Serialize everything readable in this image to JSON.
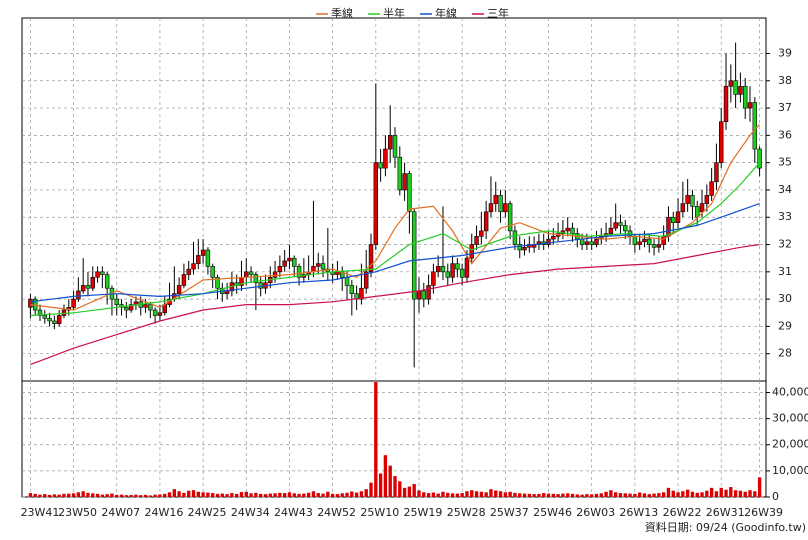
{
  "chart_data": {
    "type": "candlestick",
    "legend": "top",
    "grid": true,
    "source_note": "資料日期: 09/24 (Goodinfo.tw)",
    "up_color": "#dd0000",
    "down_color": "#22cc22",
    "ylim": [
      27,
      40.3
    ],
    "yticks": [
      28,
      29,
      30,
      31,
      32,
      33,
      34,
      35,
      36,
      37,
      38,
      39
    ],
    "x": [
      "23W41",
      null,
      null,
      null,
      null,
      null,
      null,
      null,
      null,
      "23W50",
      null,
      null,
      null,
      null,
      null,
      null,
      null,
      null,
      "24W07",
      null,
      null,
      null,
      null,
      null,
      null,
      null,
      null,
      "24W16",
      null,
      null,
      null,
      null,
      null,
      null,
      null,
      null,
      "24W25",
      null,
      null,
      null,
      null,
      null,
      null,
      null,
      null,
      "24W34",
      null,
      null,
      null,
      null,
      null,
      null,
      null,
      null,
      "24W43",
      null,
      null,
      null,
      null,
      null,
      null,
      null,
      null,
      "24W52",
      null,
      null,
      null,
      null,
      null,
      null,
      null,
      null,
      "25W10",
      null,
      null,
      null,
      null,
      null,
      null,
      null,
      null,
      "25W19",
      null,
      null,
      null,
      null,
      null,
      null,
      null,
      null,
      "25W28",
      null,
      null,
      null,
      null,
      null,
      null,
      null,
      null,
      "25W37",
      null,
      null,
      null,
      null,
      null,
      null,
      null,
      null,
      "25W46",
      null,
      null,
      null,
      null,
      null,
      null,
      null,
      null,
      "26W03",
      null,
      null,
      null,
      null,
      null,
      null,
      null,
      null,
      "26W13",
      null,
      null,
      null,
      null,
      null,
      null,
      null,
      null,
      "26W22",
      null,
      null,
      null,
      null,
      null,
      null,
      null,
      null,
      "26W31",
      null,
      null,
      null,
      null,
      null,
      null,
      null,
      "26W39"
    ],
    "open": [
      29.7,
      30.0,
      29.6,
      29.4,
      29.3,
      29.2,
      29.1,
      29.4,
      29.6,
      29.7,
      30.0,
      30.3,
      30.5,
      30.4,
      30.8,
      31.0,
      30.9,
      30.4,
      30.0,
      29.8,
      29.7,
      29.6,
      29.8,
      29.9,
      29.7,
      29.8,
      29.6,
      29.4,
      29.5,
      29.8,
      30.0,
      30.2,
      30.5,
      30.9,
      31.1,
      31.3,
      31.6,
      31.8,
      31.2,
      30.8,
      30.4,
      30.2,
      30.3,
      30.6,
      30.5,
      30.8,
      31.0,
      30.9,
      30.6,
      30.4,
      30.6,
      30.8,
      31.0,
      31.2,
      31.4,
      31.5,
      31.2,
      30.8,
      30.9,
      31.0,
      31.2,
      31.3,
      31.1,
      31.0,
      30.9,
      31.0,
      30.8,
      30.5,
      30.2,
      30.0,
      30.4,
      31.0,
      32.0,
      35.0,
      34.8,
      35.5,
      36.0,
      35.2,
      34.0,
      34.6,
      33.2,
      30.0,
      30.3,
      30.0,
      30.5,
      31.0,
      31.2,
      31.0,
      30.8,
      31.3,
      31.1,
      30.8,
      31.5,
      32.0,
      32.3,
      32.5,
      33.2,
      33.5,
      33.8,
      33.2,
      33.5,
      32.5,
      32.0,
      31.8,
      31.9,
      31.9,
      32.0,
      32.1,
      32.0,
      32.2,
      32.3,
      32.4,
      32.5,
      32.6,
      32.4,
      32.2,
      32.0,
      32.1,
      32.0,
      32.2,
      32.3,
      32.4,
      32.6,
      32.8,
      32.7,
      32.5,
      32.3,
      32.0,
      32.1,
      32.2,
      32.0,
      31.9,
      32.0,
      32.3,
      33.0,
      32.8,
      33.2,
      33.5,
      33.8,
      33.4,
      33.2,
      33.5,
      33.8,
      34.3,
      35.0,
      36.5,
      37.8,
      38.0,
      37.5,
      37.8,
      37.0,
      37.2,
      35.5
    ],
    "high": [
      30.2,
      30.1,
      29.8,
      29.6,
      29.5,
      29.4,
      29.6,
      29.8,
      30.0,
      30.3,
      30.8,
      31.5,
      31.0,
      31.2,
      31.2,
      31.2,
      31.0,
      30.5,
      30.2,
      30.0,
      29.9,
      30.0,
      30.1,
      30.1,
      30.0,
      29.9,
      29.7,
      29.8,
      30.1,
      30.6,
      31.2,
      30.8,
      31.3,
      31.4,
      32.1,
      32.2,
      32.2,
      31.9,
      31.3,
      30.9,
      30.6,
      30.6,
      31.0,
      30.9,
      31.4,
      31.5,
      31.2,
      31.0,
      30.8,
      30.9,
      31.2,
      31.4,
      31.6,
      31.8,
      32.0,
      31.6,
      31.3,
      31.5,
      31.6,
      33.6,
      31.7,
      31.6,
      32.6,
      31.3,
      31.4,
      31.2,
      31.0,
      30.7,
      30.5,
      31.3,
      31.8,
      32.4,
      37.9,
      35.5,
      36.0,
      37.1,
      36.3,
      35.6,
      35.0,
      34.7,
      33.3,
      30.8,
      30.6,
      30.9,
      31.3,
      31.6,
      33.4,
      31.3,
      31.6,
      31.5,
      31.3,
      31.8,
      32.4,
      32.7,
      33.2,
      33.6,
      34.5,
      34.3,
      34.0,
      34.0,
      33.6,
      32.7,
      32.3,
      32.2,
      32.3,
      32.3,
      32.4,
      32.4,
      32.5,
      32.6,
      32.8,
      32.9,
      33.0,
      32.8,
      32.6,
      32.4,
      32.4,
      32.3,
      32.5,
      32.6,
      32.8,
      33.0,
      33.5,
      33.1,
      32.9,
      32.7,
      32.4,
      32.4,
      32.5,
      32.4,
      32.2,
      32.3,
      32.7,
      33.4,
      33.2,
      33.7,
      34.3,
      34.4,
      34.0,
      33.6,
      34.0,
      34.2,
      34.8,
      35.7,
      37.0,
      39.0,
      38.6,
      39.4,
      38.3,
      38.1,
      37.8,
      37.4,
      35.6
    ],
    "low": [
      29.3,
      29.4,
      29.2,
      29.1,
      29.0,
      28.9,
      29.0,
      29.3,
      29.4,
      29.6,
      29.9,
      30.2,
      30.1,
      30.3,
      30.6,
      30.4,
      29.8,
      29.4,
      29.4,
      29.4,
      29.3,
      29.5,
      29.6,
      29.4,
      29.5,
      29.3,
      29.1,
      29.2,
      29.4,
      29.7,
      29.9,
      30.0,
      30.4,
      30.7,
      30.9,
      31.1,
      31.3,
      30.9,
      30.4,
      30.0,
      29.9,
      30.0,
      30.1,
      30.2,
      30.3,
      30.5,
      30.6,
      29.6,
      30.1,
      30.2,
      30.4,
      30.6,
      30.8,
      31.0,
      31.1,
      30.8,
      30.5,
      30.6,
      30.7,
      30.8,
      30.9,
      30.8,
      30.7,
      30.6,
      30.7,
      30.3,
      30.0,
      29.4,
      29.6,
      29.8,
      30.2,
      30.8,
      31.8,
      34.3,
      34.5,
      35.0,
      34.8,
      33.8,
      33.6,
      32.4,
      27.5,
      29.5,
      29.7,
      29.8,
      30.2,
      30.8,
      30.7,
      30.5,
      30.6,
      30.8,
      30.5,
      30.6,
      31.3,
      31.8,
      32.0,
      32.2,
      33.0,
      33.2,
      32.8,
      33.0,
      32.2,
      31.8,
      31.5,
      31.6,
      31.7,
      31.7,
      31.8,
      31.8,
      31.9,
      32.0,
      32.1,
      32.2,
      32.3,
      32.1,
      31.9,
      31.8,
      31.8,
      31.8,
      31.9,
      32.0,
      32.1,
      32.3,
      32.5,
      32.4,
      32.2,
      32.0,
      31.7,
      31.8,
      31.9,
      31.7,
      31.6,
      31.7,
      31.8,
      32.1,
      32.4,
      32.6,
      33.0,
      33.2,
      32.9,
      32.7,
      33.0,
      33.2,
      33.6,
      34.0,
      34.8,
      36.2,
      37.2,
      37.0,
      37.2,
      36.6,
      36.5,
      35.0,
      34.5
    ],
    "close": [
      30.0,
      29.6,
      29.4,
      29.3,
      29.2,
      29.1,
      29.4,
      29.6,
      29.7,
      30.0,
      30.3,
      30.5,
      30.4,
      30.8,
      31.0,
      30.9,
      30.4,
      30.0,
      29.8,
      29.7,
      29.6,
      29.8,
      29.9,
      29.7,
      29.8,
      29.6,
      29.4,
      29.5,
      29.8,
      30.0,
      30.2,
      30.5,
      30.9,
      31.1,
      31.3,
      31.6,
      31.8,
      31.2,
      30.8,
      30.4,
      30.2,
      30.3,
      30.6,
      30.5,
      30.8,
      31.0,
      30.9,
      30.6,
      30.4,
      30.6,
      30.8,
      31.0,
      31.2,
      31.4,
      31.5,
      31.2,
      30.8,
      30.9,
      31.0,
      31.2,
      31.3,
      31.1,
      31.0,
      30.9,
      31.0,
      30.8,
      30.5,
      30.2,
      30.0,
      30.4,
      31.0,
      32.0,
      35.0,
      34.8,
      35.5,
      36.0,
      35.2,
      34.0,
      34.6,
      33.2,
      30.0,
      30.3,
      30.0,
      30.5,
      31.0,
      31.2,
      31.0,
      30.8,
      31.3,
      31.1,
      30.8,
      31.5,
      32.0,
      32.3,
      32.5,
      33.2,
      33.5,
      33.8,
      33.2,
      33.5,
      32.5,
      32.0,
      31.8,
      31.9,
      32.0,
      32.0,
      32.1,
      32.0,
      32.2,
      32.3,
      32.4,
      32.5,
      32.6,
      32.4,
      32.2,
      32.0,
      32.1,
      32.0,
      32.2,
      32.3,
      32.4,
      32.6,
      32.8,
      32.7,
      32.5,
      32.3,
      32.0,
      32.1,
      32.2,
      32.0,
      31.9,
      32.0,
      32.3,
      33.0,
      32.8,
      33.2,
      33.5,
      33.8,
      33.4,
      33.0,
      33.5,
      33.8,
      34.3,
      35.0,
      36.5,
      37.8,
      38.0,
      37.5,
      37.8,
      37.0,
      37.2,
      35.5,
      34.8
    ],
    "lines": [
      {
        "name": "季線",
        "color": "#e07020",
        "x": [
          0,
          9,
          18,
          27,
          36,
          45,
          54,
          63,
          68,
          72,
          76,
          79,
          84,
          88,
          92,
          98,
          102,
          108,
          114,
          120,
          126,
          132,
          138,
          142,
          146,
          150,
          152
        ],
        "values": [
          29.8,
          29.6,
          30.3,
          29.7,
          30.7,
          30.8,
          30.9,
          31.1,
          30.8,
          31.4,
          32.6,
          33.3,
          33.4,
          32.5,
          31.3,
          32.6,
          32.8,
          32.4,
          32.3,
          32.2,
          32.3,
          32.2,
          32.8,
          33.5,
          35.0,
          36.0,
          36.4
        ]
      },
      {
        "name": "半年",
        "color": "#22cc22",
        "x": [
          0,
          9,
          18,
          27,
          36,
          45,
          54,
          63,
          72,
          79,
          86,
          92,
          100,
          108,
          116,
          124,
          132,
          139,
          144,
          148,
          152
        ],
        "values": [
          29.4,
          29.5,
          29.7,
          29.9,
          30.2,
          30.6,
          30.8,
          31.0,
          31.1,
          32.0,
          32.4,
          31.8,
          32.3,
          32.5,
          32.3,
          32.4,
          32.3,
          32.8,
          33.5,
          34.2,
          35.0
        ]
      },
      {
        "name": "年線",
        "color": "#1050d0",
        "x": [
          0,
          9,
          18,
          27,
          36,
          45,
          54,
          63,
          72,
          79,
          90,
          100,
          110,
          120,
          130,
          139,
          144,
          152
        ],
        "values": [
          29.9,
          30.1,
          30.2,
          30.1,
          30.2,
          30.4,
          30.6,
          30.7,
          31.0,
          31.4,
          31.6,
          31.9,
          32.1,
          32.3,
          32.4,
          32.7,
          33.0,
          33.5
        ]
      },
      {
        "name": "三年",
        "color": "#cc1050",
        "x": [
          0,
          9,
          18,
          27,
          36,
          45,
          54,
          63,
          72,
          81,
          90,
          100,
          110,
          120,
          130,
          139,
          148,
          152
        ],
        "values": [
          27.6,
          28.2,
          28.7,
          29.2,
          29.6,
          29.8,
          29.8,
          29.9,
          30.1,
          30.3,
          30.6,
          30.9,
          31.1,
          31.2,
          31.3,
          31.6,
          31.9,
          32.0
        ]
      }
    ],
    "volume": {
      "color": "#dd0000",
      "ylim": [
        0,
        44400
      ],
      "yticks": [
        0,
        {
          "value": 10000,
          "label": "10,000"
        },
        {
          "value": 20000,
          "label": "20,000"
        },
        {
          "value": 30000,
          "label": "30,000"
        },
        {
          "value": 40000,
          "label": "40,000"
        }
      ],
      "values": [
        1500,
        1200,
        900,
        1100,
        800,
        1000,
        900,
        1200,
        1300,
        1400,
        1800,
        2200,
        1600,
        1400,
        1200,
        900,
        1100,
        1300,
        800,
        900,
        700,
        800,
        900,
        700,
        800,
        600,
        900,
        1000,
        1200,
        1800,
        3000,
        2200,
        1600,
        2400,
        2600,
        2000,
        1800,
        1700,
        1500,
        1200,
        1300,
        1100,
        1500,
        1200,
        1900,
        2000,
        1400,
        1600,
        1200,
        1100,
        1300,
        1400,
        1600,
        1500,
        1800,
        1400,
        1200,
        1300,
        1600,
        2200,
        1500,
        1300,
        2000,
        1200,
        1100,
        1400,
        1600,
        2100,
        1700,
        2200,
        3000,
        5500,
        44000,
        9000,
        16000,
        12000,
        8000,
        6000,
        3500,
        4000,
        5000,
        2500,
        1800,
        1500,
        1700,
        1300,
        2000,
        1600,
        1400,
        1300,
        1500,
        2200,
        2600,
        2200,
        2000,
        1800,
        3000,
        2500,
        2200,
        1800,
        2000,
        1600,
        1400,
        1300,
        1200,
        1100,
        1200,
        1500,
        1300,
        1200,
        1100,
        1300,
        1400,
        1200,
        1000,
        900,
        1100,
        1000,
        1200,
        1400,
        2000,
        2600,
        1800,
        1500,
        1400,
        1300,
        1200,
        1700,
        1400,
        1100,
        1300,
        1500,
        1800,
        3500,
        2400,
        1800,
        2200,
        2800,
        2000,
        1600,
        1800,
        2400,
        3500,
        2200,
        3500,
        2800,
        3800,
        2600,
        2400,
        2000,
        2600,
        2200,
        7500
      ]
    }
  }
}
